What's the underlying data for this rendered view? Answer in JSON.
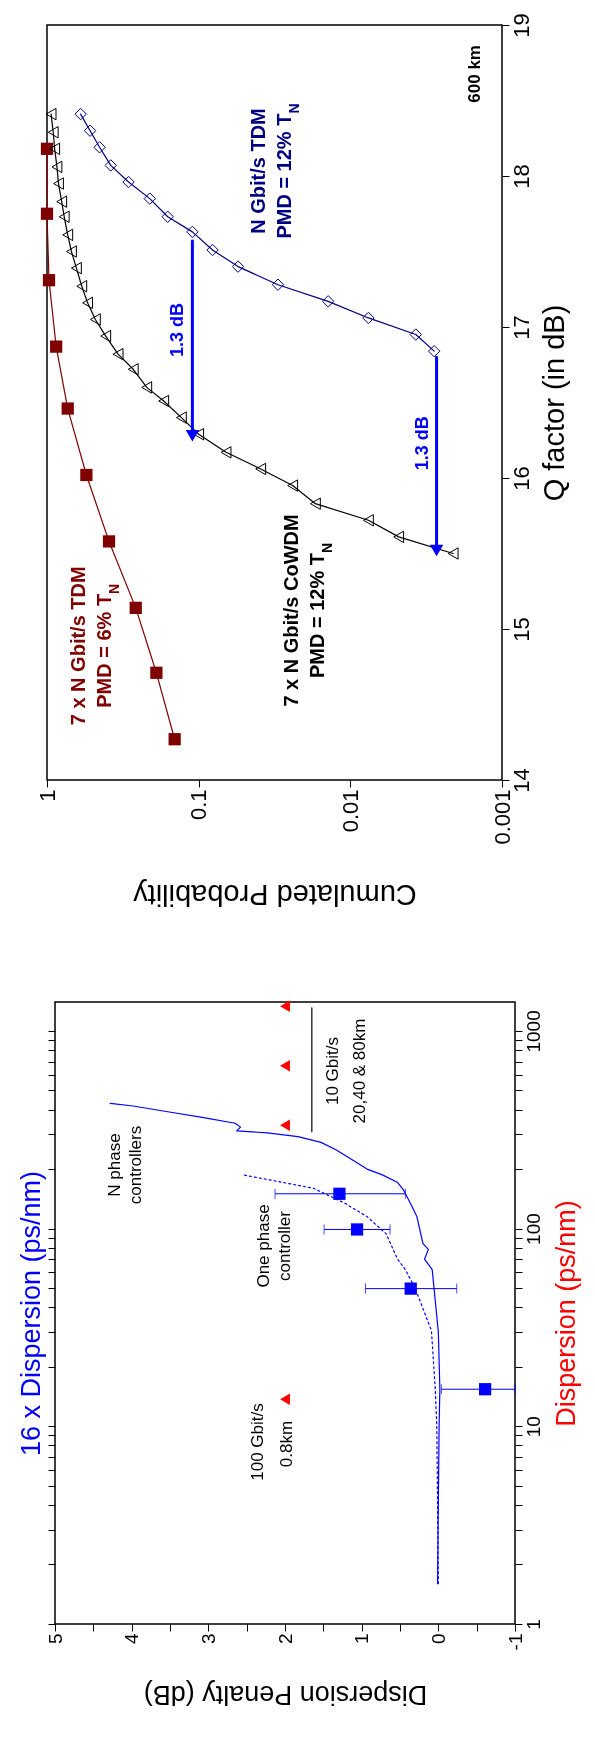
{
  "chart_data": [
    {
      "type": "line",
      "xlabel": "Cumulated Probability",
      "ylabel": "Q factor (in dB)",
      "log": "x",
      "xlim": [
        1,
        0.001
      ],
      "xticks": [
        1,
        0.1,
        0.01,
        0.001
      ],
      "ylim": [
        14,
        19
      ],
      "yticks": [
        14,
        15,
        16,
        17,
        18,
        19
      ],
      "series": [
        {
          "name": "7 x N Gbit/s TDM\nPMD = 6% T$_{N}$",
          "color": "#800000",
          "marker": "square",
          "values": [
            14.27,
            14.71,
            15.14,
            15.58,
            16.02,
            16.46,
            16.87,
            17.31,
            17.75,
            18.18
          ],
          "x": [
            0.144,
            0.19,
            0.26,
            0.39,
            0.55,
            0.73,
            0.87,
            0.97,
            1,
            1
          ]
        },
        {
          "name": "7 x N Gbit/s CoWDM\nPMD = 12% T$_{N}$",
          "color": "#000000",
          "marker": "triangle",
          "values": [
            15.5,
            15.61,
            15.72,
            15.83,
            15.95,
            16.06,
            16.17,
            16.29,
            16.4,
            16.51,
            16.6,
            16.72,
            16.82,
            16.94,
            17.05,
            17.16,
            17.27,
            17.39,
            17.5,
            17.61,
            17.73,
            17.83,
            17.95,
            18.06,
            18.18,
            18.29,
            18.41
          ],
          "x": [
            0.0021,
            0.0048,
            0.0076,
            0.017,
            0.024,
            0.039,
            0.066,
            0.1,
            0.13,
            0.17,
            0.22,
            0.27,
            0.34,
            0.41,
            0.48,
            0.54,
            0.59,
            0.64,
            0.69,
            0.73,
            0.77,
            0.8,
            0.84,
            0.86,
            0.89,
            0.91,
            0.94
          ]
        },
        {
          "name": "N Gbit/s TDM\nPMD = 12% T$_{N}$",
          "color": "#000080",
          "marker": "diamond",
          "values": [
            16.84,
            16.95,
            17.06,
            17.17,
            17.28,
            17.4,
            17.51,
            17.63,
            17.73,
            17.85,
            17.96,
            18.07,
            18.19,
            18.3,
            18.41
          ],
          "x": [
            0.0028,
            0.0037,
            0.0076,
            0.014,
            0.03,
            0.055,
            0.081,
            0.11,
            0.16,
            0.21,
            0.29,
            0.38,
            0.45,
            0.52,
            0.6
          ]
        },
        {
          "name": "1.3 dB",
          "color": "#0000ff",
          "marker": "triangle",
          "values": [
            17.57,
            16.28
          ],
          "x": [
            0.11,
            0.11
          ]
        },
        {
          "name": "1.3 dB",
          "color": "#0000ff",
          "marker": "triangle",
          "values": [
            16.8,
            15.52
          ],
          "x": [
            0.0027,
            0.0027
          ]
        }
      ],
      "annotations": [
        "600 km"
      ]
    },
    {
      "type": "line",
      "xlabel": "Dispersion Penalty (dB)",
      "ylabel": "Dispersion (ps/nm)",
      "y2label": "16 x Dispersion (ps/nm)",
      "log": "y",
      "xlim": [
        5,
        -1
      ],
      "xticks": [
        -1,
        {
          "value": -0.5,
          "label": null
        },
        0,
        {
          "value": 0.5,
          "label": null
        },
        1,
        {
          "value": 1.5,
          "label": null
        },
        2,
        {
          "value": 2.5,
          "label": null
        },
        3,
        {
          "value": 3.5,
          "label": null
        },
        4,
        {
          "value": 4.5,
          "label": null
        },
        5
      ],
      "ylim": [
        1,
        1400
      ],
      "yticks": [
        1,
        {
          "value": 2,
          "label": null
        },
        {
          "value": 3,
          "label": null
        },
        {
          "value": 4,
          "label": null
        },
        {
          "value": 5,
          "label": null
        },
        {
          "value": 6,
          "label": null
        },
        {
          "value": 7,
          "label": null
        },
        {
          "value": 8,
          "label": null
        },
        {
          "value": 9,
          "label": null
        },
        10,
        {
          "value": 20,
          "label": null
        },
        {
          "value": 30,
          "label": null
        },
        {
          "value": 40,
          "label": null
        },
        {
          "value": 50,
          "label": null
        },
        {
          "value": 60,
          "label": null
        },
        {
          "value": 70,
          "label": null
        },
        {
          "value": 80,
          "label": null
        },
        {
          "value": 90,
          "label": null
        },
        100,
        {
          "value": 200,
          "label": null
        },
        {
          "value": 300,
          "label": null
        },
        {
          "value": 400,
          "label": null
        },
        {
          "value": 500,
          "label": null
        },
        {
          "value": 600,
          "label": null
        },
        {
          "value": 700,
          "label": null
        },
        {
          "value": 800,
          "label": null
        },
        {
          "value": 900,
          "label": null
        },
        1000
      ],
      "series": [
        {
          "type": "scatter",
          "color": "#ff0000",
          "marker": "triangle",
          "values": [
            13.7,
            333,
            666,
            1333
          ],
          "x": [
            2,
            2,
            2,
            2
          ]
        },
        {
          "type": "line",
          "color": "#000000",
          "marker": "none",
          "values": [
            309,
            1309
          ],
          "x": [
            1.65,
            1.65
          ]
        },
        {
          "type": "line",
          "color": "#0000ff",
          "line_style": "solid",
          "marker": "none",
          "values": [
            1.6,
            10,
            15.4,
            30,
            62,
            70,
            78.5,
            84,
            115,
            131,
            156,
            171,
            187,
            200,
            214,
            250,
            273,
            292,
            305,
            312,
            326,
            341,
            365,
            390,
            417,
            430
          ],
          "x": [
            0.01,
            -0.01,
            -0.02,
            0.0,
            0.08,
            0.18,
            0.13,
            0.2,
            0.28,
            0.35,
            0.45,
            0.53,
            0.73,
            0.93,
            1.05,
            1.33,
            1.53,
            1.83,
            2.23,
            2.63,
            2.58,
            2.65,
            3.08,
            3.53,
            3.98,
            4.28
          ]
        },
        {
          "type": "line",
          "color": "#0000ff",
          "line_style": "dotted",
          "marker": "none",
          "values": [
            1.6,
            10,
            15.4,
            30.5,
            49.7,
            62,
            70,
            77,
            94,
            115,
            135,
            160,
            187
          ],
          "x": [
            0,
            0.02,
            0.04,
            0.09,
            0.3,
            0.43,
            0.53,
            0.58,
            0.68,
            0.93,
            1.23,
            1.63,
            2.55
          ]
        },
        {
          "type": "scatter",
          "color": "#0000ff",
          "marker": "square",
          "values": [
            15.4,
            49.7,
            99,
            150
          ],
          "x": [
            -0.61,
            0.36,
            1.06,
            1.29
          ],
          "xerrors": [
            [
              -1.0,
              -0.04
            ],
            [
              -0.24,
              0.95
            ],
            [
              0.63,
              1.49
            ],
            [
              0.43,
              2.13
            ]
          ]
        }
      ],
      "annotations": [
        "N phase\ncontrollers",
        "One phase\ncontroller",
        "10 Gbit/s",
        "20,40 & 80km",
        "100 Gbit/s",
        "0.8km"
      ]
    }
  ]
}
